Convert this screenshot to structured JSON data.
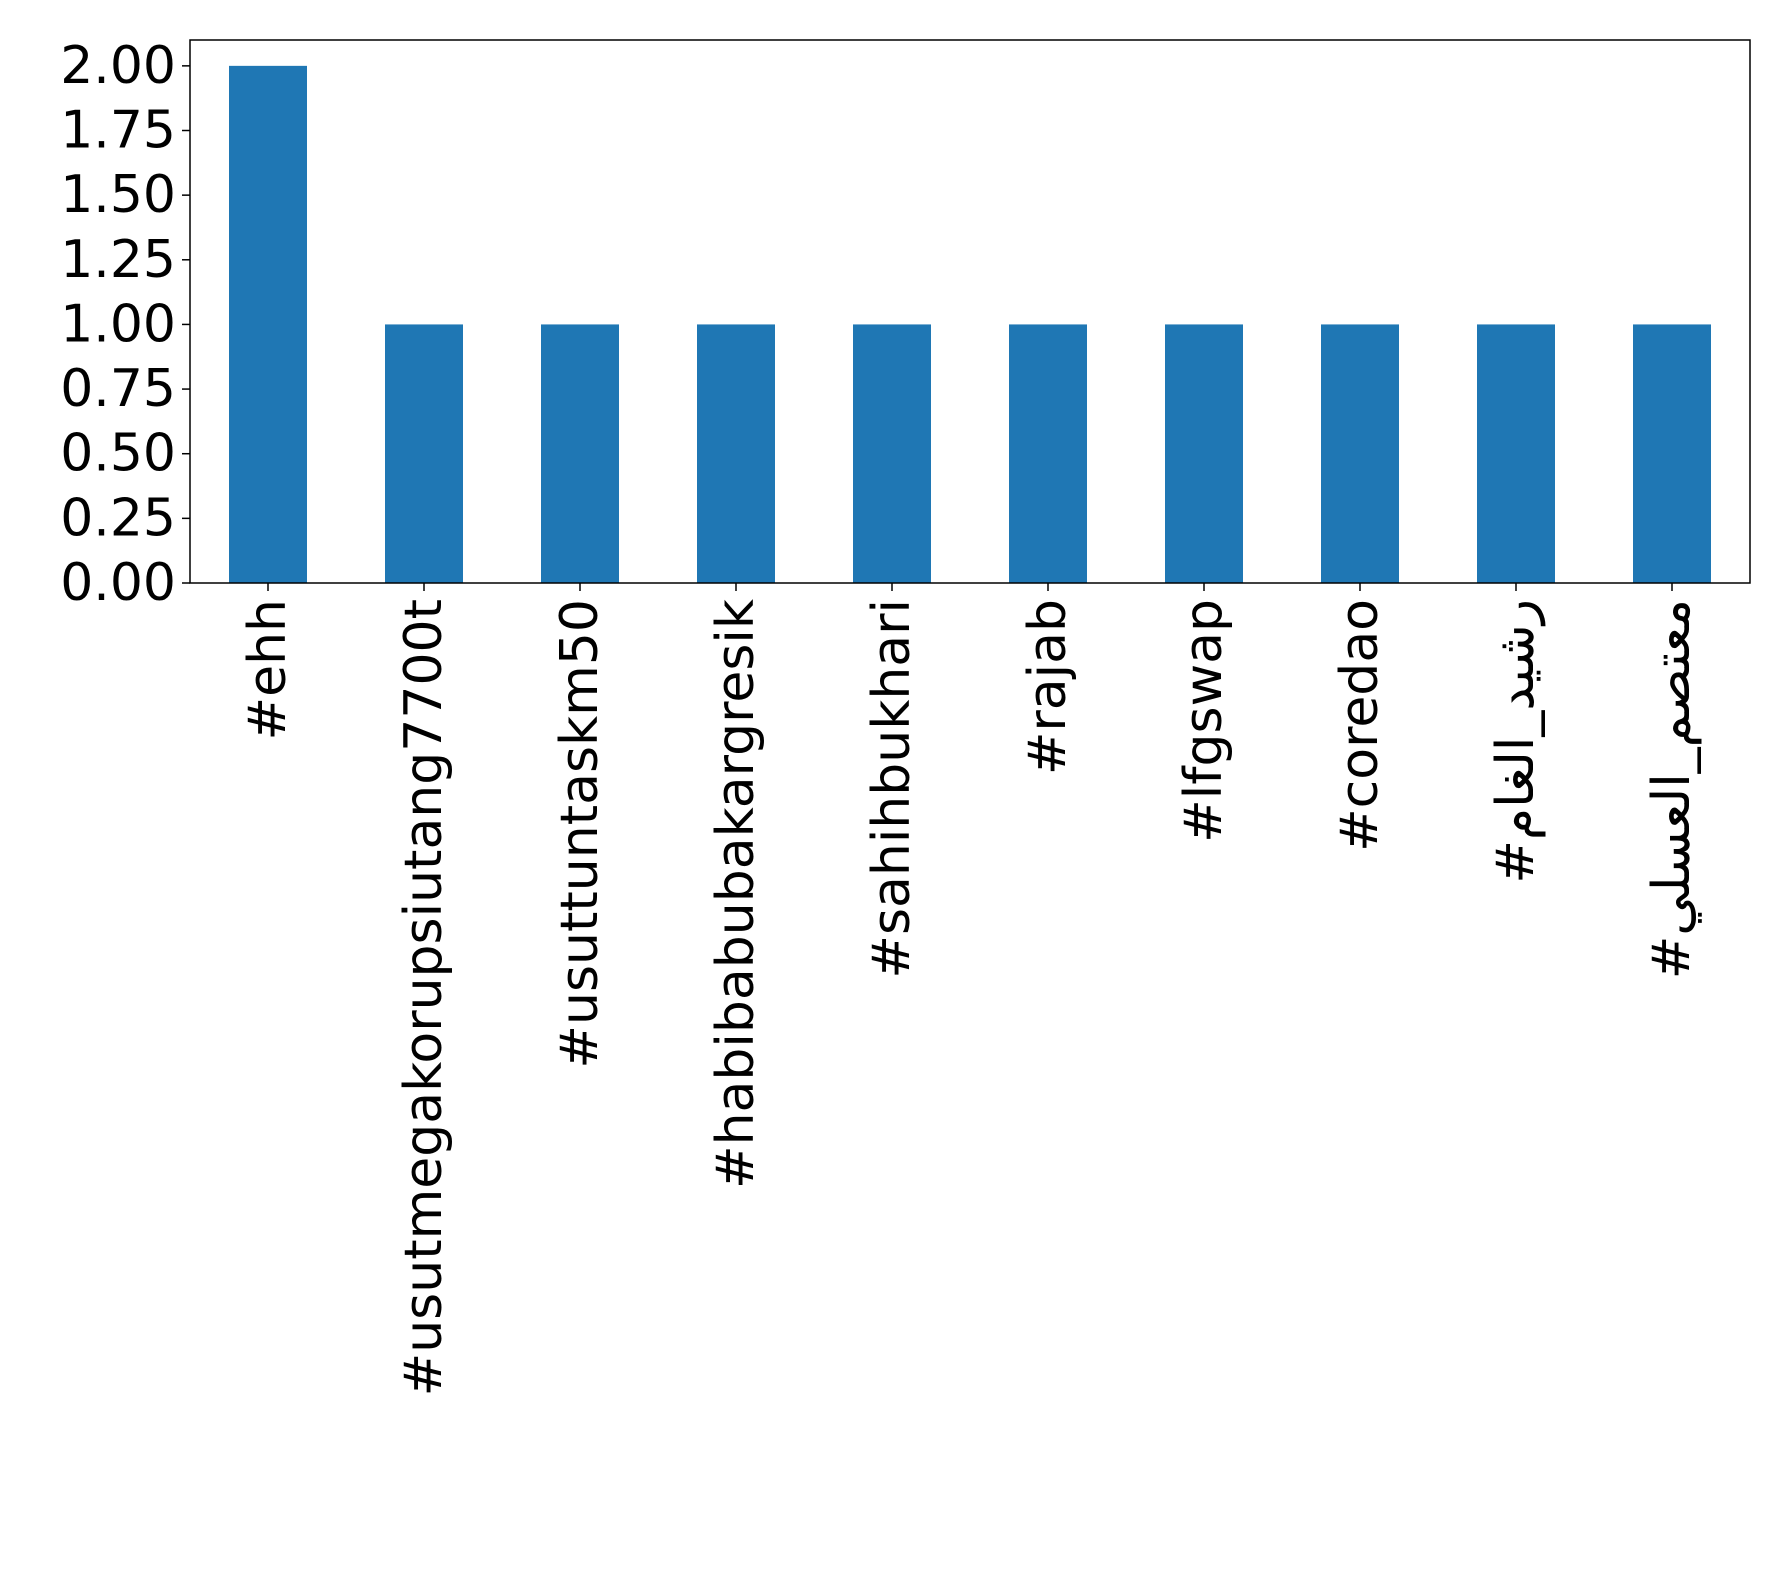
{
  "chart_data": {
    "type": "bar",
    "categories": [
      "#ehh",
      "#usutmegakorupsiutang7700t",
      "#usuttuntaskm50",
      "#habibabubakargresik",
      "#sahihbukhari",
      "#rajab",
      "#lfgswap",
      "#coredao",
      "#رشيد_الغام",
      "#معتصم_العسلي"
    ],
    "values": [
      2,
      1,
      1,
      1,
      1,
      1,
      1,
      1,
      1,
      1
    ],
    "yticks": [
      "0.00",
      "0.25",
      "0.50",
      "0.75",
      "1.00",
      "1.25",
      "1.50",
      "1.75",
      "2.00"
    ],
    "ylim": [
      0,
      2.1
    ],
    "bar_color": "#1f77b4",
    "grid": false,
    "title": "",
    "xlabel": "",
    "ylabel": ""
  }
}
